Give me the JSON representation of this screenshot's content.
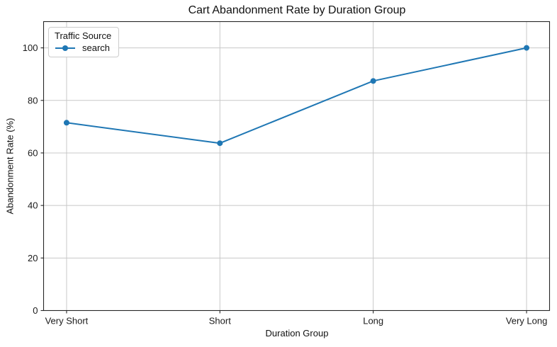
{
  "chart_data": {
    "type": "line",
    "title": "Cart Abandonment Rate by Duration Group",
    "xlabel": "Duration Group",
    "ylabel": "Abandonment Rate (%)",
    "categories": [
      "Very Short",
      "Short",
      "Long",
      "Very Long"
    ],
    "series": [
      {
        "name": "search",
        "values": [
          71.5,
          63.7,
          87.4,
          100.0
        ],
        "color": "#1f77b4",
        "marker": "circle"
      }
    ],
    "ylim": [
      0,
      110
    ],
    "yticks": [
      0,
      20,
      40,
      60,
      80,
      100
    ],
    "grid": true,
    "legend": {
      "title": "Traffic Source",
      "position": "upper left"
    },
    "colors": {
      "grid": "#c8c8c8",
      "spine": "#262626",
      "text": "#1a1a1a",
      "background": "#ffffff"
    }
  }
}
